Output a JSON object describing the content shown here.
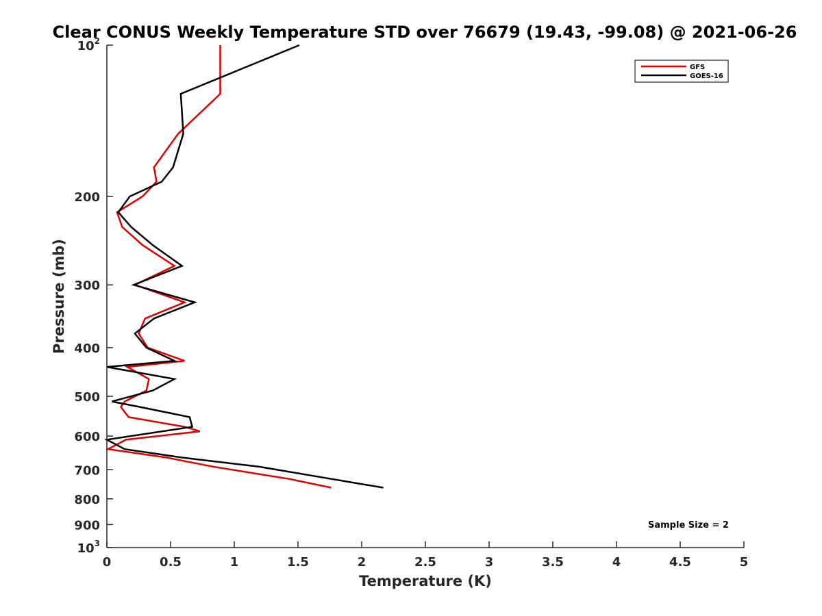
{
  "chart_data": {
    "type": "line",
    "title": "Clear CONUS Weekly Temperature STD over 76679 (19.43, -99.08) @ 2021-06-26",
    "xlabel": "Temperature (K)",
    "ylabel": "Pressure (mb)",
    "xlim": [
      0,
      5
    ],
    "ylim": [
      100,
      1000
    ],
    "y_scale": "log",
    "y_reversed": true,
    "grid": false,
    "legend_position": "top-right",
    "x_ticks": [
      {
        "value": 0,
        "label": "0"
      },
      {
        "value": 0.5,
        "label": "0.5"
      },
      {
        "value": 1,
        "label": "1"
      },
      {
        "value": 1.5,
        "label": "1.5"
      },
      {
        "value": 2,
        "label": "2"
      },
      {
        "value": 2.5,
        "label": "2.5"
      },
      {
        "value": 3,
        "label": "3"
      },
      {
        "value": 3.5,
        "label": "3.5"
      },
      {
        "value": 4,
        "label": "4"
      },
      {
        "value": 4.5,
        "label": "4.5"
      },
      {
        "value": 5,
        "label": "5"
      }
    ],
    "y_ticks": [
      {
        "value": 100,
        "base": "10",
        "exp": "2"
      },
      {
        "value": 200,
        "label": "200"
      },
      {
        "value": 300,
        "label": "300"
      },
      {
        "value": 400,
        "label": "400"
      },
      {
        "value": 500,
        "label": "500"
      },
      {
        "value": 600,
        "label": "600"
      },
      {
        "value": 700,
        "label": "700"
      },
      {
        "value": 800,
        "label": "800"
      },
      {
        "value": 900,
        "label": "900"
      },
      {
        "value": 1000,
        "base": "10",
        "exp": "3"
      }
    ],
    "series": [
      {
        "name": "GFS",
        "color": "#e00000",
        "points": [
          [
            0.89,
            100
          ],
          [
            0.89,
            125
          ],
          [
            0.56,
            150
          ],
          [
            0.37,
            175
          ],
          [
            0.39,
            187
          ],
          [
            0.28,
            200
          ],
          [
            0.08,
            215
          ],
          [
            0.12,
            230
          ],
          [
            0.28,
            250
          ],
          [
            0.53,
            275
          ],
          [
            0.22,
            300
          ],
          [
            0.61,
            325
          ],
          [
            0.3,
            350
          ],
          [
            0.25,
            375
          ],
          [
            0.32,
            400
          ],
          [
            0.61,
            425
          ],
          [
            0.16,
            437
          ],
          [
            0.33,
            462
          ],
          [
            0.31,
            487
          ],
          [
            0.14,
            512
          ],
          [
            0.11,
            525
          ],
          [
            0.17,
            550
          ],
          [
            0.61,
            575
          ],
          [
            0.73,
            587
          ],
          [
            0.15,
            610
          ],
          [
            0.01,
            637
          ],
          [
            0.47,
            662
          ],
          [
            0.83,
            690
          ],
          [
            1.43,
            730
          ],
          [
            1.76,
            760
          ]
        ]
      },
      {
        "name": "GOES-16",
        "color": "#000000",
        "points": [
          [
            1.51,
            100
          ],
          [
            0.58,
            125
          ],
          [
            0.6,
            150
          ],
          [
            0.52,
            175
          ],
          [
            0.43,
            187
          ],
          [
            0.18,
            200
          ],
          [
            0.09,
            215
          ],
          [
            0.19,
            230
          ],
          [
            0.36,
            250
          ],
          [
            0.59,
            275
          ],
          [
            0.21,
            300
          ],
          [
            0.69,
            325
          ],
          [
            0.37,
            350
          ],
          [
            0.22,
            375
          ],
          [
            0.31,
            400
          ],
          [
            0.53,
            425
          ],
          [
            0.0,
            437
          ],
          [
            0.53,
            462
          ],
          [
            0.36,
            487
          ],
          [
            0.04,
            512
          ],
          [
            0.26,
            525
          ],
          [
            0.65,
            550
          ],
          [
            0.67,
            575
          ],
          [
            0.0,
            610
          ],
          [
            0.14,
            637
          ],
          [
            0.59,
            662
          ],
          [
            1.19,
            690
          ],
          [
            1.76,
            730
          ],
          [
            2.17,
            760
          ]
        ]
      }
    ],
    "annotation": "Sample Size = 2"
  }
}
